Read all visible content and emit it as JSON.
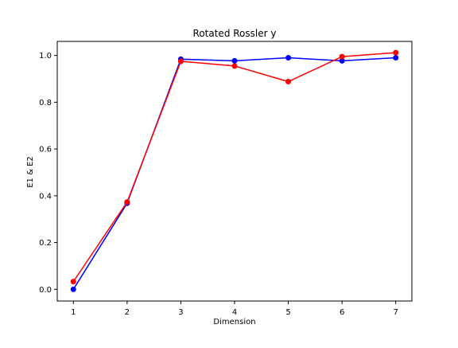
{
  "chart_data": {
    "type": "line",
    "title": "Rotated Rossler y",
    "xlabel": "Dimension",
    "ylabel": "E1 & E2",
    "x": [
      1,
      2,
      3,
      4,
      5,
      6,
      7
    ],
    "xlim": [
      0.7,
      7.3
    ],
    "ylim": [
      -0.05,
      1.06
    ],
    "xticks": [
      "1",
      "2",
      "3",
      "4",
      "5",
      "6",
      "7"
    ],
    "yticks": [
      "0.0",
      "0.2",
      "0.4",
      "0.6",
      "0.8",
      "1.0"
    ],
    "grid": false,
    "series": [
      {
        "color": "#0000ff",
        "marker": "circle",
        "values": [
          0.0,
          0.368,
          0.984,
          0.977,
          0.99,
          0.977,
          0.99
        ]
      },
      {
        "color": "#ff0000",
        "marker": "circle",
        "values": [
          0.033,
          0.373,
          0.975,
          0.955,
          0.888,
          0.995,
          1.012
        ]
      }
    ]
  }
}
